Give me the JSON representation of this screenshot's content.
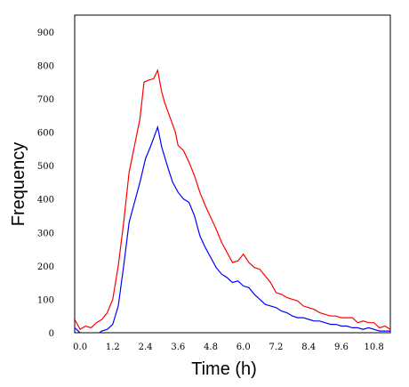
{
  "chart_data": {
    "type": "line",
    "xlabel": "Time (h)",
    "ylabel": "Frequency",
    "xlim": [
      -0.2,
      11.4
    ],
    "ylim": [
      0,
      950
    ],
    "xticks": [
      0.0,
      1.2,
      2.4,
      3.6,
      4.8,
      6.0,
      7.2,
      8.4,
      9.6,
      10.8
    ],
    "xtick_labels": [
      "0.0",
      "1.2",
      "2.4",
      "3.6",
      "4.8",
      "6.0",
      "7.2",
      "8.4",
      "9.6",
      "10.8"
    ],
    "yticks": [
      0,
      100,
      200,
      300,
      400,
      500,
      600,
      700,
      800,
      900
    ],
    "ytick_labels": [
      "0",
      "100",
      "200",
      "300",
      "400",
      "500",
      "600",
      "700",
      "800",
      "900"
    ],
    "grid": false,
    "series": [
      {
        "color": "#ff0000",
        "points": [
          [
            -0.2,
            40
          ],
          [
            0.0,
            10
          ],
          [
            0.2,
            20
          ],
          [
            0.4,
            15
          ],
          [
            0.6,
            30
          ],
          [
            0.8,
            40
          ],
          [
            1.0,
            60
          ],
          [
            1.2,
            100
          ],
          [
            1.4,
            200
          ],
          [
            1.6,
            330
          ],
          [
            1.8,
            480
          ],
          [
            2.0,
            560
          ],
          [
            2.2,
            640
          ],
          [
            2.35,
            750
          ],
          [
            2.5,
            755
          ],
          [
            2.7,
            760
          ],
          [
            2.85,
            785
          ],
          [
            3.0,
            720
          ],
          [
            3.1,
            690
          ],
          [
            3.3,
            645
          ],
          [
            3.5,
            600
          ],
          [
            3.6,
            560
          ],
          [
            3.8,
            545
          ],
          [
            4.0,
            510
          ],
          [
            4.2,
            470
          ],
          [
            4.4,
            420
          ],
          [
            4.6,
            380
          ],
          [
            4.8,
            345
          ],
          [
            5.0,
            310
          ],
          [
            5.2,
            270
          ],
          [
            5.4,
            240
          ],
          [
            5.6,
            210
          ],
          [
            5.8,
            215
          ],
          [
            6.0,
            235
          ],
          [
            6.2,
            210
          ],
          [
            6.4,
            195
          ],
          [
            6.6,
            190
          ],
          [
            6.8,
            170
          ],
          [
            7.0,
            150
          ],
          [
            7.2,
            120
          ],
          [
            7.4,
            115
          ],
          [
            7.6,
            105
          ],
          [
            7.8,
            100
          ],
          [
            8.0,
            95
          ],
          [
            8.2,
            80
          ],
          [
            8.4,
            75
          ],
          [
            8.6,
            70
          ],
          [
            8.8,
            60
          ],
          [
            9.0,
            55
          ],
          [
            9.2,
            50
          ],
          [
            9.4,
            50
          ],
          [
            9.6,
            45
          ],
          [
            9.8,
            45
          ],
          [
            10.0,
            45
          ],
          [
            10.2,
            30
          ],
          [
            10.4,
            35
          ],
          [
            10.6,
            30
          ],
          [
            10.8,
            30
          ],
          [
            11.0,
            15
          ],
          [
            11.2,
            20
          ],
          [
            11.4,
            10
          ]
        ]
      },
      {
        "color": "#0000ff",
        "points": [
          [
            -0.2,
            15
          ],
          [
            0.0,
            0
          ],
          [
            0.2,
            -5
          ],
          [
            0.4,
            0
          ],
          [
            0.6,
            -5
          ],
          [
            0.8,
            5
          ],
          [
            1.0,
            10
          ],
          [
            1.2,
            25
          ],
          [
            1.4,
            80
          ],
          [
            1.6,
            200
          ],
          [
            1.8,
            330
          ],
          [
            2.0,
            390
          ],
          [
            2.2,
            450
          ],
          [
            2.4,
            520
          ],
          [
            2.6,
            560
          ],
          [
            2.85,
            615
          ],
          [
            3.0,
            555
          ],
          [
            3.2,
            500
          ],
          [
            3.4,
            450
          ],
          [
            3.6,
            420
          ],
          [
            3.8,
            400
          ],
          [
            4.0,
            390
          ],
          [
            4.2,
            350
          ],
          [
            4.4,
            290
          ],
          [
            4.6,
            255
          ],
          [
            4.8,
            225
          ],
          [
            5.0,
            195
          ],
          [
            5.2,
            175
          ],
          [
            5.4,
            165
          ],
          [
            5.6,
            150
          ],
          [
            5.8,
            155
          ],
          [
            6.0,
            140
          ],
          [
            6.2,
            135
          ],
          [
            6.4,
            115
          ],
          [
            6.6,
            100
          ],
          [
            6.8,
            85
          ],
          [
            7.0,
            80
          ],
          [
            7.2,
            75
          ],
          [
            7.4,
            65
          ],
          [
            7.6,
            60
          ],
          [
            7.8,
            50
          ],
          [
            8.0,
            45
          ],
          [
            8.2,
            45
          ],
          [
            8.4,
            40
          ],
          [
            8.6,
            35
          ],
          [
            8.8,
            35
          ],
          [
            9.0,
            30
          ],
          [
            9.2,
            25
          ],
          [
            9.4,
            25
          ],
          [
            9.6,
            20
          ],
          [
            9.8,
            20
          ],
          [
            10.0,
            15
          ],
          [
            10.2,
            15
          ],
          [
            10.4,
            10
          ],
          [
            10.6,
            15
          ],
          [
            10.8,
            10
          ],
          [
            11.0,
            5
          ],
          [
            11.2,
            5
          ],
          [
            11.4,
            5
          ]
        ]
      }
    ]
  }
}
